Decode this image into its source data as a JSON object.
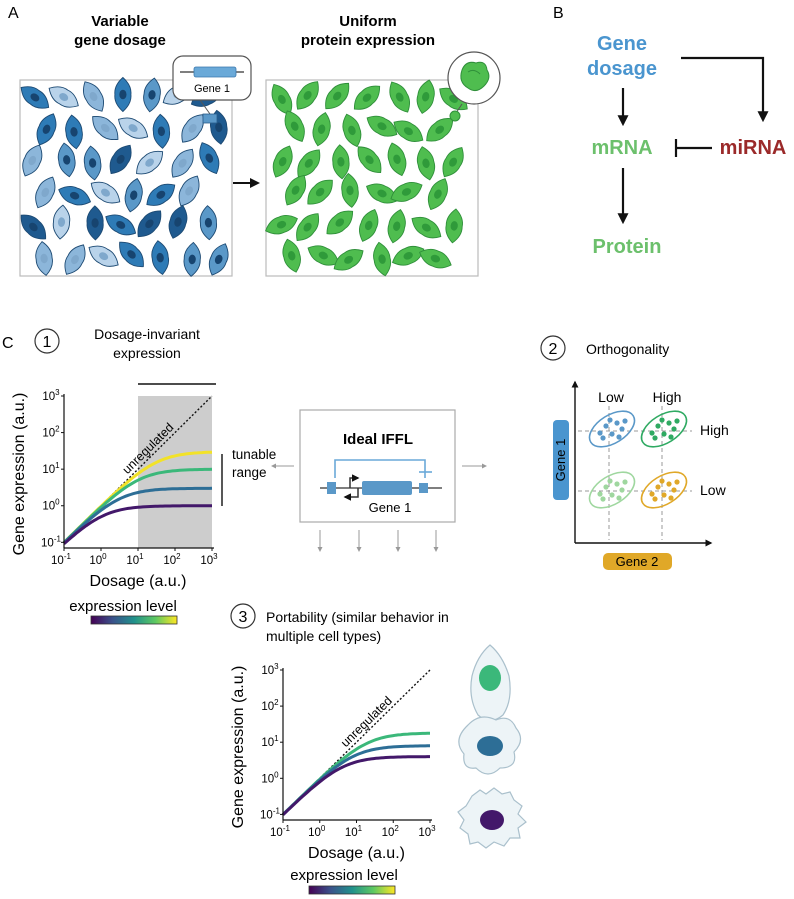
{
  "panel_a": {
    "letter": "A",
    "left_title_line1": "Variable",
    "left_title_line2": "gene dosage",
    "right_title_line1": "Uniform",
    "right_title_line2": "protein expression",
    "gene_callout_label": "Gene 1",
    "colors": {
      "blue_shades": [
        "#1f5a8f",
        "#2e7bb6",
        "#5a98c8",
        "#8cb6da",
        "#b9d3ea"
      ],
      "green": "#4fbd4f",
      "green_dark": "#2f8f3a"
    }
  },
  "panel_b": {
    "letter": "B",
    "gene_line1": "Gene",
    "gene_line2": "dosage",
    "mrna": "mRNA",
    "mirna": "miRNA",
    "protein": "Protein",
    "colors": {
      "gene": "#4a95cf",
      "mrna": "#6cc06c",
      "mirna": "#9b2a2a",
      "protein": "#6cc06c"
    }
  },
  "panel_c": {
    "letter": "C",
    "section1": {
      "number": "1",
      "title_line1": "Dosage-invariant",
      "title_line2": "expression",
      "tunable_line1": "tunable",
      "tunable_line2": "range"
    },
    "section2": {
      "number": "2",
      "title": "Orthogonality",
      "ylabel": "Gene 1",
      "xlabel": "Gene 2",
      "col_low": "Low",
      "col_high": "High",
      "row_high": "High",
      "row_low": "Low",
      "colors": {
        "gene1": "#4a95cf",
        "gene2": "#e0a828",
        "blue": "#5a98c8",
        "green": "#2faa62",
        "light_green": "#9fd79f",
        "gold": "#e0a828"
      }
    },
    "section3": {
      "number": "3",
      "title_line1": "Portability (similar behavior in",
      "title_line2": "multiple cell types)"
    },
    "iffl": {
      "title": "Ideal IFFL",
      "gene_label": "Gene 1"
    },
    "colorbar_label": "expression level"
  },
  "chart_data": [
    {
      "type": "line",
      "xlabel": "Dosage (a.u.)",
      "ylabel": "Gene expression (a.u.)",
      "x_scale": "log",
      "y_scale": "log",
      "xlim": [
        0.1,
        1000
      ],
      "ylim": [
        0.07,
        1000
      ],
      "x_ticks": [
        "10-1",
        "100",
        "101",
        "102",
        "103"
      ],
      "y_ticks": [
        "10-1",
        "100",
        "101",
        "102",
        "103"
      ],
      "annotation": "unregulated",
      "shaded_x_range": [
        10,
        1000
      ],
      "series": [
        {
          "plateau": 30,
          "color": "#f2e228"
        },
        {
          "plateau": 10,
          "color": "#3bb87a"
        },
        {
          "plateau": 3,
          "color": "#2d6e96"
        },
        {
          "plateau": 1,
          "color": "#43186a"
        }
      ]
    },
    {
      "type": "line",
      "xlabel": "Dosage (a.u.)",
      "ylabel": "Gene expression (a.u.)",
      "x_scale": "log",
      "y_scale": "log",
      "xlim": [
        0.1,
        1000
      ],
      "ylim": [
        0.07,
        1000
      ],
      "x_ticks": [
        "10-1",
        "100",
        "101",
        "102",
        "103"
      ],
      "y_ticks": [
        "10-1",
        "100",
        "101",
        "102",
        "103"
      ],
      "annotation": "unregulated",
      "series": [
        {
          "plateau": 18,
          "color": "#3bb87a"
        },
        {
          "plateau": 8,
          "color": "#2d6e96"
        },
        {
          "plateau": 4,
          "color": "#43186a"
        }
      ]
    }
  ]
}
